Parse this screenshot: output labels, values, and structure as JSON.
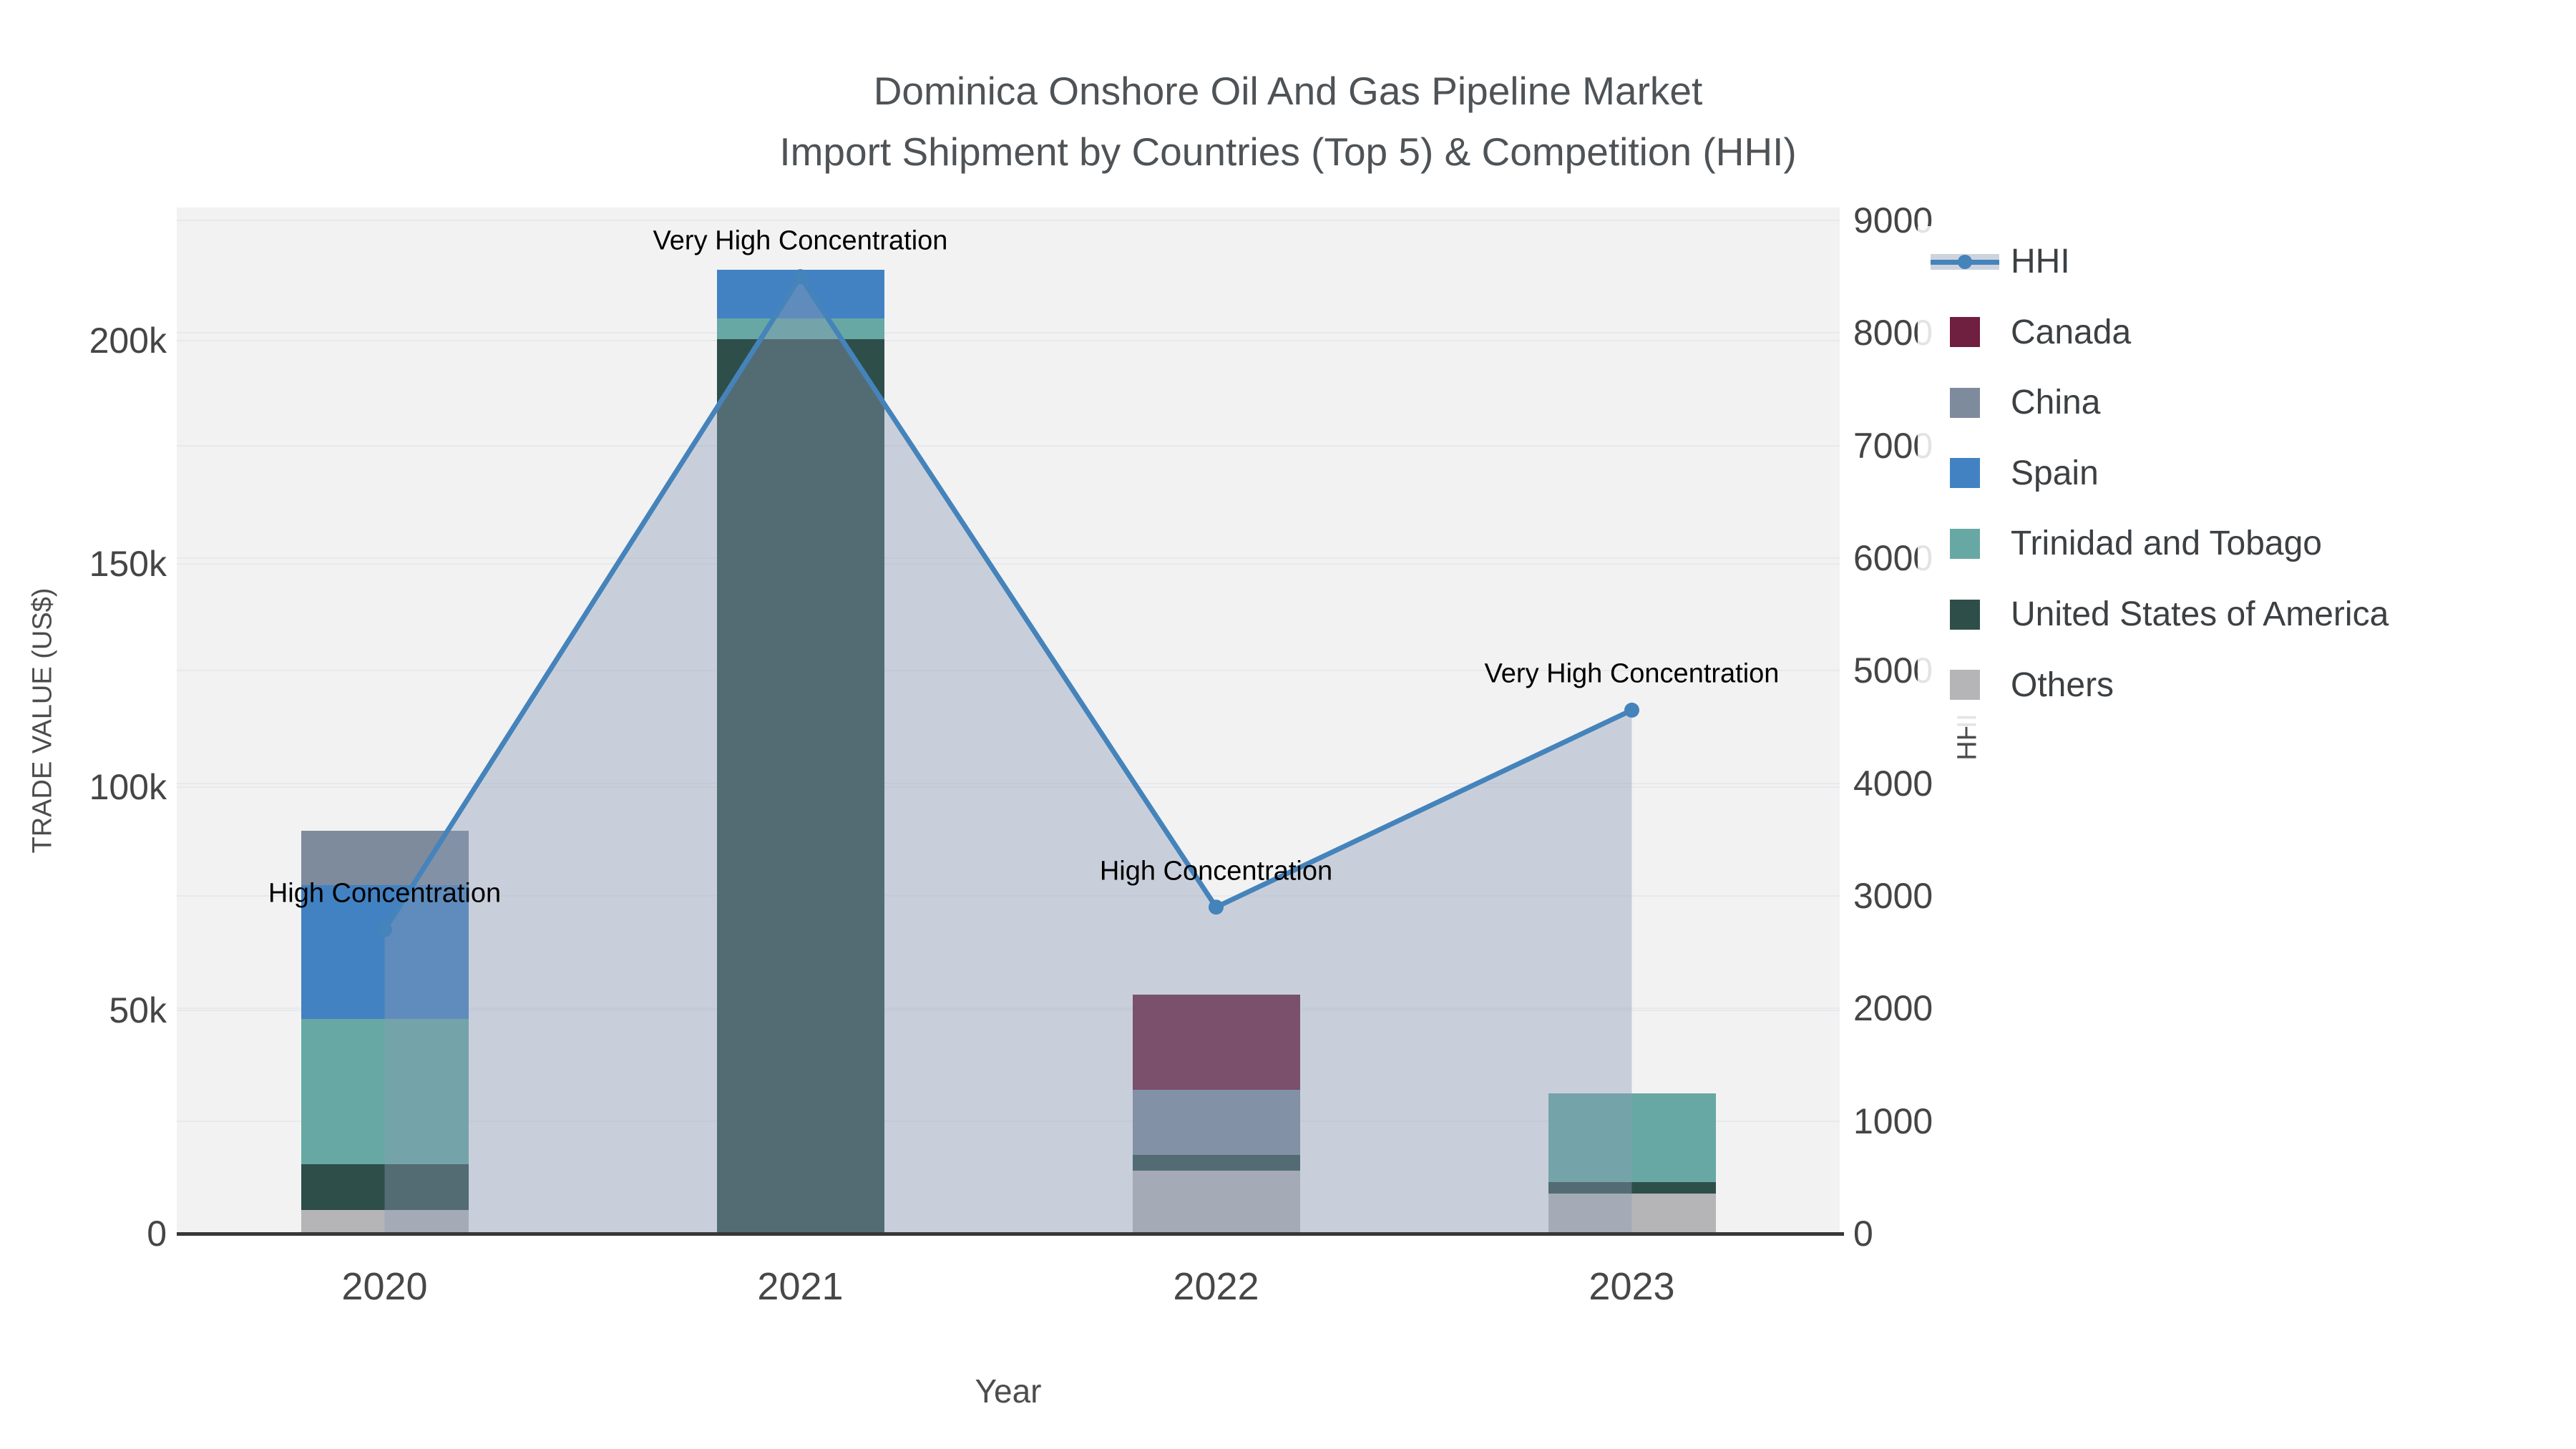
{
  "title": {
    "line1": "Dominica Onshore Oil And Gas Pipeline Market",
    "line2": "Import Shipment by Countries (Top 5) & Competition (HHI)"
  },
  "axes": {
    "x": {
      "title": "Year",
      "tick_labels": [
        "2020",
        "2021",
        "2022",
        "2023"
      ]
    },
    "y_left": {
      "title": "TRADE VALUE (US$)",
      "tick_labels": [
        "0",
        "50k",
        "100k",
        "150k",
        "200k"
      ],
      "tick_values_k": [
        0,
        50,
        100,
        150,
        200
      ]
    },
    "y_right": {
      "title": "HHI",
      "tick_labels": [
        "0",
        "1000",
        "2000",
        "3000",
        "4000",
        "5000",
        "6000",
        "7000",
        "8000",
        "9000"
      ],
      "tick_values": [
        0,
        1000,
        2000,
        3000,
        4000,
        5000,
        6000,
        7000,
        8000,
        9000
      ]
    }
  },
  "legend": {
    "items": [
      {
        "label": "HHI",
        "type": "line",
        "color": "#4583bb"
      },
      {
        "label": "Canada",
        "type": "swatch",
        "color": "#6f1f3f"
      },
      {
        "label": "China",
        "type": "swatch",
        "color": "#7d8b9d"
      },
      {
        "label": "Spain",
        "type": "swatch",
        "color": "#4282c3"
      },
      {
        "label": "Trinidad and Tobago",
        "type": "swatch",
        "color": "#67a8a4"
      },
      {
        "label": "United States of America",
        "type": "swatch",
        "color": "#2e4e49"
      },
      {
        "label": "Others",
        "type": "swatch",
        "color": "#b5b5b7"
      }
    ]
  },
  "chart_data": {
    "type": "bar+line",
    "title": "Dominica Onshore Oil And Gas Pipeline Market — Import Shipment by Countries (Top 5) & Competition (HHI)",
    "categories": [
      "2020",
      "2021",
      "2022",
      "2023"
    ],
    "bar_value_unit": "thousand US$ (trade value)",
    "stack_order_bottom_to_top": [
      "Others",
      "United States of America",
      "Trinidad and Tobago",
      "Spain",
      "China",
      "Canada"
    ],
    "series": [
      {
        "name": "Canada",
        "color": "#6f1f3f",
        "values": [
          0,
          0,
          21.3,
          0
        ]
      },
      {
        "name": "China",
        "color": "#7d8b9d",
        "values": [
          12.2,
          0,
          14.6,
          0
        ]
      },
      {
        "name": "Spain",
        "color": "#4282c3",
        "values": [
          29.9,
          10.9,
          0,
          0
        ]
      },
      {
        "name": "Trinidad and Tobago",
        "color": "#67a8a4",
        "values": [
          32.6,
          4.6,
          0,
          19.9
        ]
      },
      {
        "name": "United States of America",
        "color": "#2e4e49",
        "values": [
          10.2,
          200.3,
          3.5,
          2.5
        ]
      },
      {
        "name": "Others",
        "color": "#b5b5b7",
        "values": [
          5.3,
          0,
          14.1,
          9.0
        ]
      }
    ],
    "bar_totals_k": [
      90.2,
      215.8,
      53.5,
      31.4
    ],
    "line_series": {
      "name": "HHI",
      "color": "#4583bb",
      "area_fill": "rgba(140,155,180,0.40)",
      "values": [
        2700,
        8500,
        2900,
        4650
      ]
    },
    "annotations": [
      {
        "x": "2020",
        "text": "High Concentration"
      },
      {
        "x": "2021",
        "text": "Very High Concentration"
      },
      {
        "x": "2022",
        "text": "High Concentration"
      },
      {
        "x": "2023",
        "text": "Very High Concentration"
      }
    ],
    "xlabel": "Year",
    "ylabel_left": "TRADE VALUE (US$)",
    "ylabel_right": "HHI",
    "ylim_left_k": [
      0,
      230
    ],
    "ylim_right": [
      0,
      9120
    ],
    "grid": true,
    "legend_position": "right"
  }
}
